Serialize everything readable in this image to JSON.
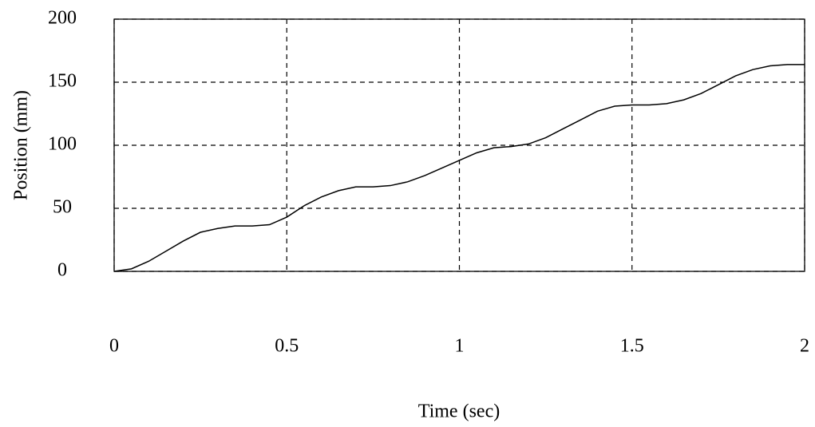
{
  "chart_data": {
    "type": "line",
    "x_label": "Time (sec)",
    "y_label": "Position (mm)",
    "x": [
      0,
      0.05,
      0.1,
      0.15,
      0.2,
      0.25,
      0.3,
      0.35,
      0.4,
      0.45,
      0.5,
      0.55,
      0.6,
      0.65,
      0.7,
      0.75,
      0.8,
      0.85,
      0.9,
      0.95,
      1,
      1.05,
      1.1,
      1.15,
      1.2,
      1.25,
      1.3,
      1.35,
      1.4,
      1.45,
      1.5,
      1.55,
      1.6,
      1.65,
      1.7,
      1.75,
      1.8,
      1.85,
      1.9,
      1.95,
      2
    ],
    "y": [
      0,
      2,
      8,
      16,
      24,
      31,
      34,
      36,
      36,
      37,
      43,
      52,
      59,
      64,
      67,
      67,
      68,
      71,
      76,
      82,
      88,
      94,
      98,
      99,
      101,
      106,
      113,
      120,
      127,
      131,
      132,
      132,
      133,
      136,
      141,
      148,
      155,
      160,
      163,
      164,
      164
    ],
    "color": "#000000",
    "xlim": [
      0,
      2
    ],
    "xticks": [
      0,
      0.5,
      1,
      1.5,
      2
    ],
    "ylim": [
      0,
      200
    ],
    "yticks": [
      0,
      50,
      100,
      150,
      200
    ],
    "grid": true
  }
}
